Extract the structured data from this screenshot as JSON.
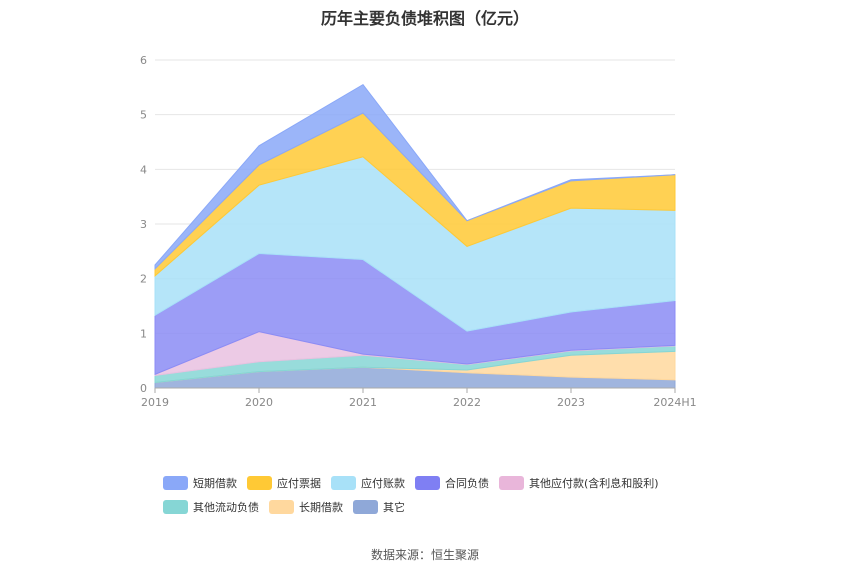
{
  "chart_data": {
    "type": "area",
    "stacked": true,
    "title": "历年主要负债堆积图（亿元）",
    "categories": [
      "2019",
      "2020",
      "2021",
      "2022",
      "2023",
      "2024H1"
    ],
    "yticks": [
      "0",
      "1",
      "2",
      "3",
      "4",
      "5",
      "6"
    ],
    "ylim": [
      0,
      6
    ],
    "grid": true,
    "legend_position": "bottom",
    "series": [
      {
        "name": "其它",
        "color": "#8fa8d8",
        "values": [
          0.1,
          0.3,
          0.38,
          0.28,
          0.2,
          0.15
        ]
      },
      {
        "name": "长期借款",
        "color": "#ffd89e",
        "values": [
          0.0,
          0.0,
          0.0,
          0.05,
          0.4,
          0.52
        ]
      },
      {
        "name": "其他流动负债",
        "color": "#86d6d5",
        "values": [
          0.13,
          0.18,
          0.22,
          0.1,
          0.08,
          0.1
        ]
      },
      {
        "name": "其他应付款(含利息和股利)",
        "color": "#e9c1e0",
        "values": [
          0.02,
          0.55,
          0.02,
          0.01,
          0.01,
          0.01
        ]
      },
      {
        "name": "合同负债",
        "color": "#8b8cf5",
        "values": [
          1.08,
          1.43,
          1.73,
          0.6,
          0.7,
          0.82
        ]
      },
      {
        "name": "应付账款",
        "color": "#a8e1f8",
        "values": [
          0.72,
          1.25,
          1.88,
          1.55,
          1.9,
          1.65
        ]
      },
      {
        "name": "应付票据",
        "color": "#ffc935",
        "values": [
          0.13,
          0.37,
          0.8,
          0.47,
          0.5,
          0.65
        ]
      },
      {
        "name": "短期借款",
        "color": "#8aa8f8",
        "values": [
          0.07,
          0.35,
          0.52,
          0.0,
          0.02,
          0.0
        ]
      }
    ]
  },
  "legend": [
    {
      "name": "短期借款",
      "color": "#8aa8f8"
    },
    {
      "name": "应付票据",
      "color": "#ffc935"
    },
    {
      "name": "应付账款",
      "color": "#a8e1f8"
    },
    {
      "name": "合同负债",
      "color": "#7f7ff3"
    },
    {
      "name": "其他应付款(含利息和股利)",
      "color": "#e9b6da"
    },
    {
      "name": "其他流动负债",
      "color": "#86d6d5"
    },
    {
      "name": "长期借款",
      "color": "#ffd89e"
    },
    {
      "name": "其它",
      "color": "#8fa8d8"
    }
  ],
  "source": "数据来源：恒生聚源"
}
